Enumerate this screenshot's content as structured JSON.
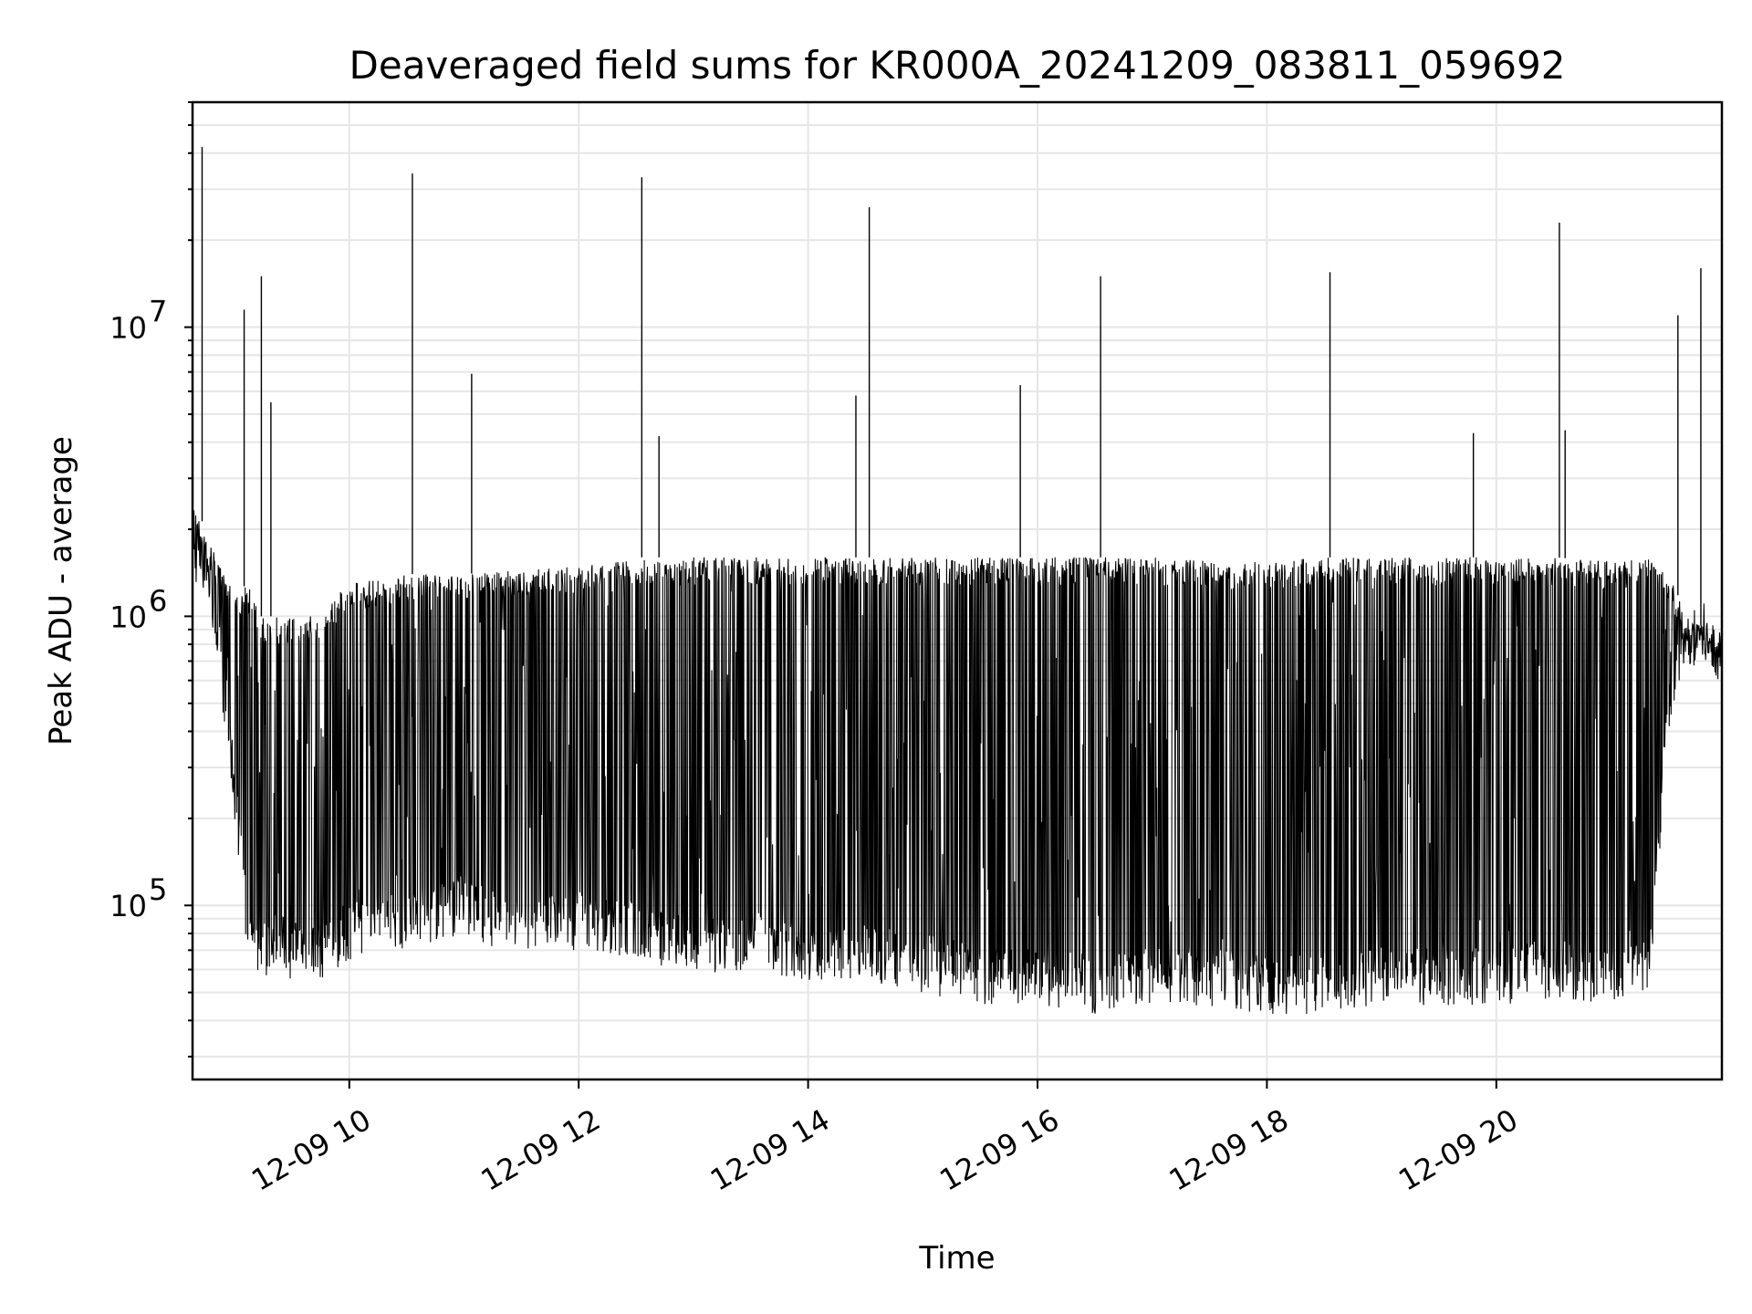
{
  "chart_data": {
    "type": "line",
    "title": "Deaveraged field sums for KR000A_20241209_083811_059692",
    "xlabel": "Time",
    "ylabel": "Peak ADU - average",
    "yscale": "log",
    "ylim": [
      25000,
      60000000
    ],
    "xlim": [
      "2024-12-09 08:38",
      "2024-12-09 21:58"
    ],
    "x_ticks": [
      "12-09 10",
      "12-09 12",
      "12-09 14",
      "12-09 16",
      "12-09 18",
      "12-09 20"
    ],
    "x_tick_times": [
      "2024-12-09 10:00",
      "2024-12-09 12:00",
      "2024-12-09 14:00",
      "2024-12-09 16:00",
      "2024-12-09 18:00",
      "2024-12-09 20:00"
    ],
    "y_ticks": [
      {
        "base": "10",
        "exp": "5",
        "value": 100000
      },
      {
        "base": "10",
        "exp": "6",
        "value": 1000000
      },
      {
        "base": "10",
        "exp": "7",
        "value": 10000000
      }
    ],
    "grid": "major and minor",
    "line_color": "#000000",
    "series": [
      {
        "name": "",
        "x": [
          "2024-12-09 08:38",
          "2024-12-09 08:45",
          "2024-12-09 08:52",
          "2024-12-09 09:00",
          "2024-12-09 09:07",
          "2024-12-09 09:14",
          "2024-12-09 09:21",
          "2024-12-09 09:30",
          "2024-12-09 09:45",
          "2024-12-09 10:00",
          "2024-12-09 10:30",
          "2024-12-09 11:00",
          "2024-12-09 11:30",
          "2024-12-09 12:00",
          "2024-12-09 12:30",
          "2024-12-09 13:00",
          "2024-12-09 13:30",
          "2024-12-09 14:00",
          "2024-12-09 14:30",
          "2024-12-09 15:00",
          "2024-12-09 15:30",
          "2024-12-09 16:00",
          "2024-12-09 16:30",
          "2024-12-09 17:00",
          "2024-12-09 17:30",
          "2024-12-09 18:00",
          "2024-12-09 18:30",
          "2024-12-09 19:00",
          "2024-12-09 19:30",
          "2024-12-09 20:00",
          "2024-12-09 20:30",
          "2024-12-09 21:00",
          "2024-12-09 21:20",
          "2024-12-09 21:30",
          "2024-12-09 21:40",
          "2024-12-09 21:50",
          "2024-12-09 21:58"
        ],
        "low": [
          1300000,
          1200000,
          600000,
          200000,
          60000,
          55000,
          60000,
          55000,
          55000,
          65000,
          70000,
          80000,
          65000,
          70000,
          65000,
          55000,
          60000,
          55000,
          55000,
          50000,
          45000,
          45000,
          42000,
          45000,
          45000,
          42000,
          42000,
          45000,
          45000,
          45000,
          48000,
          45000,
          50000,
          400000,
          650000,
          700000,
          550000
        ],
        "high": [
          2500000,
          2000000,
          1500000,
          1200000,
          1300000,
          1000000,
          1000000,
          1000000,
          1050000,
          1300000,
          1400000,
          1400000,
          1450000,
          1500000,
          1600000,
          1600000,
          1600000,
          1600000,
          1600000,
          1600000,
          1600000,
          1600000,
          1600000,
          1600000,
          1550000,
          1550000,
          1600000,
          1600000,
          1600000,
          1600000,
          1600000,
          1550000,
          1600000,
          1400000,
          1000000,
          900000,
          800000
        ]
      }
    ],
    "spikes": [
      {
        "x": "2024-12-09 08:43",
        "y": 42000000
      },
      {
        "x": "2024-12-09 09:05",
        "y": 11500000
      },
      {
        "x": "2024-12-09 09:14",
        "y": 15000000
      },
      {
        "x": "2024-12-09 09:19",
        "y": 5500000
      },
      {
        "x": "2024-12-09 10:33",
        "y": 34000000
      },
      {
        "x": "2024-12-09 11:04",
        "y": 6900000
      },
      {
        "x": "2024-12-09 12:33",
        "y": 33000000
      },
      {
        "x": "2024-12-09 12:42",
        "y": 4200000
      },
      {
        "x": "2024-12-09 14:32",
        "y": 26000000
      },
      {
        "x": "2024-12-09 14:25",
        "y": 5800000
      },
      {
        "x": "2024-12-09 15:51",
        "y": 6300000
      },
      {
        "x": "2024-12-09 16:33",
        "y": 15000000
      },
      {
        "x": "2024-12-09 18:33",
        "y": 15500000
      },
      {
        "x": "2024-12-09 19:48",
        "y": 4300000
      },
      {
        "x": "2024-12-09 20:33",
        "y": 23000000
      },
      {
        "x": "2024-12-09 20:36",
        "y": 4400000
      },
      {
        "x": "2024-12-09 21:35",
        "y": 11000000
      },
      {
        "x": "2024-12-09 21:47",
        "y": 16000000
      }
    ]
  }
}
